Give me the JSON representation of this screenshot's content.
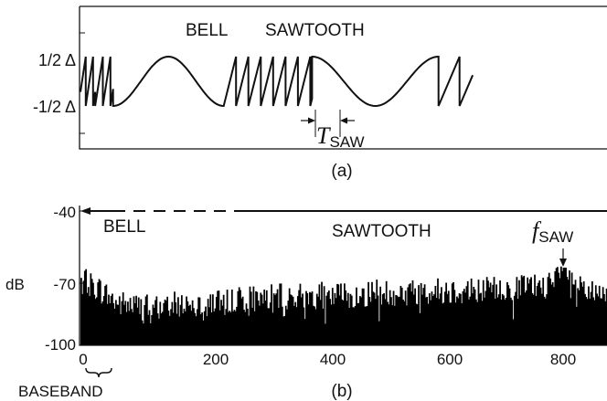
{
  "chart_data": [
    {
      "panel_label": "(a)",
      "type": "line",
      "annotations": {
        "bell": "BELL",
        "sawtooth": "SAWTOOTH",
        "period_symbol": "T",
        "period_subscript": "SAW"
      },
      "y_ticks": [
        {
          "value": 0.5,
          "label": "1/2 Δ"
        },
        {
          "value": -0.5,
          "label": "-1/2 Δ"
        }
      ],
      "ylim": [
        -1.05,
        0.95
      ],
      "x_range": [
        0,
        1000
      ],
      "segments": [
        {
          "kind": "sawtooth",
          "x": [
            0,
            28
          ],
          "period": 14,
          "phase_x": 10
        },
        {
          "kind": "sawtooth",
          "x": [
            28,
            62
          ],
          "period": 14.5,
          "phase_x": 28
        },
        {
          "kind": "bell",
          "x": [
            62,
            272
          ],
          "amplitude": 0.5
        },
        {
          "kind": "sawtooth",
          "x": [
            272,
            440
          ],
          "period": 23.5,
          "phase_x": 272
        },
        {
          "kind": "bell",
          "x": [
            440,
            680
          ],
          "amplitude": -0.5
        },
        {
          "kind": "sawtooth",
          "x": [
            680,
            745
          ],
          "period": 40,
          "phase_x": 680
        }
      ],
      "colors": {
        "line": "#111111"
      }
    },
    {
      "panel_label": "(b)",
      "type": "bar",
      "ylabel": "dB",
      "y_ticks": [
        -40,
        -70,
        -100
      ],
      "x_ticks": [
        0,
        200,
        400,
        600,
        800
      ],
      "xlim": [
        0,
        870
      ],
      "ylim": [
        -102,
        -38
      ],
      "annotations": {
        "bell": "BELL",
        "sawtooth": "SAWTOOTH",
        "peak_symbol": "f",
        "peak_subscript": "SAW",
        "baseband": "BASEBAND"
      },
      "ranges": {
        "bell_solid": [
          0,
          50
        ],
        "bell_dashed": [
          50,
          245
        ],
        "sawtooth": [
          245,
          870
        ],
        "baseband": [
          0,
          40
        ]
      },
      "peak": {
        "x": 800,
        "y": -65
      },
      "spectrum": {
        "profile_points": [
          [
            0,
            -71
          ],
          [
            30,
            -75
          ],
          [
            60,
            -82
          ],
          [
            110,
            -84
          ],
          [
            250,
            -80
          ],
          [
            500,
            -77
          ],
          [
            700,
            -75
          ],
          [
            780,
            -73
          ],
          [
            800,
            -67
          ],
          [
            820,
            -75
          ],
          [
            870,
            -80
          ]
        ],
        "seed": 7,
        "column_count": 440
      },
      "colors": {
        "bars": "#000000"
      }
    }
  ]
}
